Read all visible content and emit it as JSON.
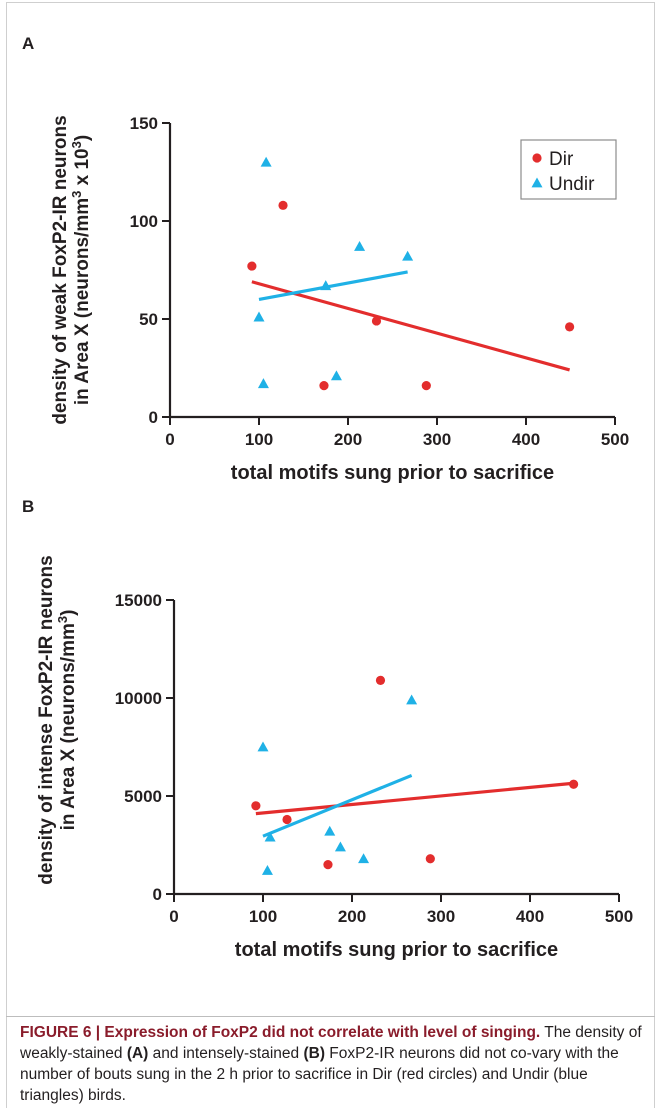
{
  "figure": {
    "panels": [
      "A",
      "B"
    ],
    "caption": {
      "label": "FIGURE 6 | Expression of FoxP2 did not correlate with level of singing.",
      "parts": [
        {
          "text": " The density of weakly-stained ",
          "bold": false
        },
        {
          "text": "(A)",
          "bold": true
        },
        {
          "text": " and intensely-stained ",
          "bold": false
        },
        {
          "text": "(B)",
          "bold": true
        },
        {
          "text": " FoxP2-IR neurons did not co-vary with the number of bouts sung in the 2 h prior to sacrifice in Dir (red circles) and Undir (blue triangles) birds.",
          "bold": false
        }
      ]
    }
  },
  "colors": {
    "dir": "#e32d2d",
    "undir": "#1fb1e6",
    "axis": "#231f20",
    "caption_title": "#8a1c2b"
  },
  "chart_data": [
    {
      "panel": "A",
      "type": "scatter",
      "xlabel": "total motifs sung prior to sacrifice",
      "ylabel_line1": "density of weak FoxP2-IR neurons",
      "ylabel_line2_prefix": "in Area X (neurons/mm",
      "ylabel_sup1": "3",
      "ylabel_mid": " x 10",
      "ylabel_sup2": "3",
      "ylabel_suffix": ")",
      "xlim": [
        0,
        500
      ],
      "ylim": [
        0,
        150
      ],
      "xticks": [
        "0",
        "100",
        "200",
        "300",
        "400",
        "500"
      ],
      "yticks": [
        "0",
        "50",
        "100",
        "150"
      ],
      "legend": {
        "position": "top-right",
        "entries": [
          "Dir",
          "Undir"
        ]
      },
      "series": [
        {
          "name": "Dir",
          "marker": "circle",
          "points": [
            [
              92,
              77
            ],
            [
              127,
              108
            ],
            [
              173,
              16
            ],
            [
              232,
              49
            ],
            [
              288,
              16
            ],
            [
              449,
              46
            ]
          ],
          "fit": [
            [
              92,
              69
            ],
            [
              449,
              24
            ]
          ]
        },
        {
          "name": "Undir",
          "marker": "triangle",
          "points": [
            [
              100,
              51
            ],
            [
              105,
              17
            ],
            [
              108,
              130
            ],
            [
              175,
              67
            ],
            [
              187,
              21
            ],
            [
              213,
              87
            ],
            [
              267,
              82
            ]
          ],
          "fit": [
            [
              100,
              60
            ],
            [
              267,
              74
            ]
          ]
        }
      ]
    },
    {
      "panel": "B",
      "type": "scatter",
      "xlabel": "total motifs sung prior to sacrifice",
      "ylabel_line1": "density of intense FoxP2-IR neurons",
      "ylabel_line2_prefix": "in Area X (neurons/mm",
      "ylabel_sup1": "3",
      "ylabel_mid": "",
      "ylabel_sup2": "",
      "ylabel_suffix": ")",
      "xlim": [
        0,
        500
      ],
      "ylim": [
        0,
        15000
      ],
      "xticks": [
        "0",
        "100",
        "200",
        "300",
        "400",
        "500"
      ],
      "yticks": [
        "0",
        "5000",
        "10000",
        "15000"
      ],
      "series": [
        {
          "name": "Dir",
          "marker": "circle",
          "points": [
            [
              92,
              4500
            ],
            [
              127,
              3800
            ],
            [
              173,
              1500
            ],
            [
              232,
              10900
            ],
            [
              288,
              1800
            ],
            [
              449,
              5600
            ]
          ],
          "fit": [
            [
              92,
              4100
            ],
            [
              449,
              5650
            ]
          ]
        },
        {
          "name": "Undir",
          "marker": "triangle",
          "points": [
            [
              100,
              7500
            ],
            [
              105,
              1200
            ],
            [
              108,
              2900
            ],
            [
              175,
              3200
            ],
            [
              187,
              2400
            ],
            [
              213,
              1800
            ],
            [
              267,
              9900
            ]
          ],
          "fit": [
            [
              100,
              2950
            ],
            [
              267,
              6050
            ]
          ]
        }
      ]
    }
  ]
}
